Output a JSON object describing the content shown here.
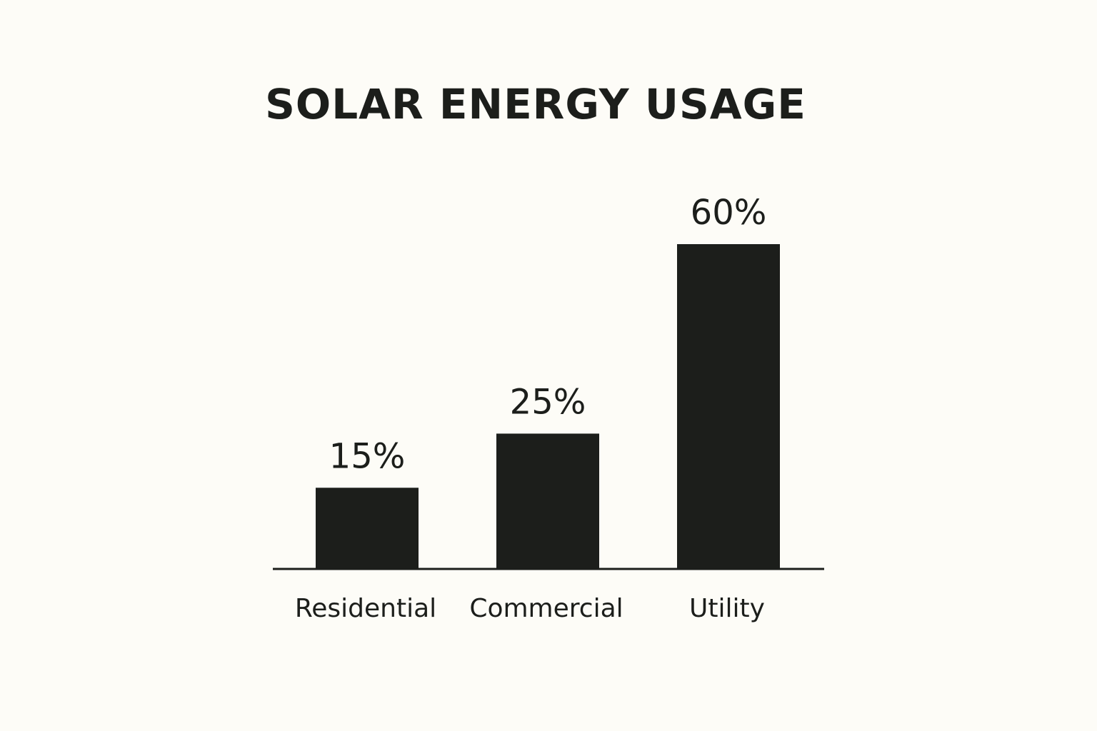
{
  "chart_data": {
    "type": "bar",
    "title": "SOLAR ENERGY USAGE",
    "categories": [
      "Residential",
      "Commercial",
      "Utility"
    ],
    "values": [
      15,
      25,
      60
    ],
    "value_labels": [
      "15%",
      "25%",
      "60%"
    ],
    "xlabel": "",
    "ylabel": "",
    "ylim": [
      0,
      60
    ],
    "grid": false,
    "colors": {
      "bar": "#1c1e1b",
      "background": "#fdfcf7",
      "text": "#1c1e1b"
    }
  }
}
